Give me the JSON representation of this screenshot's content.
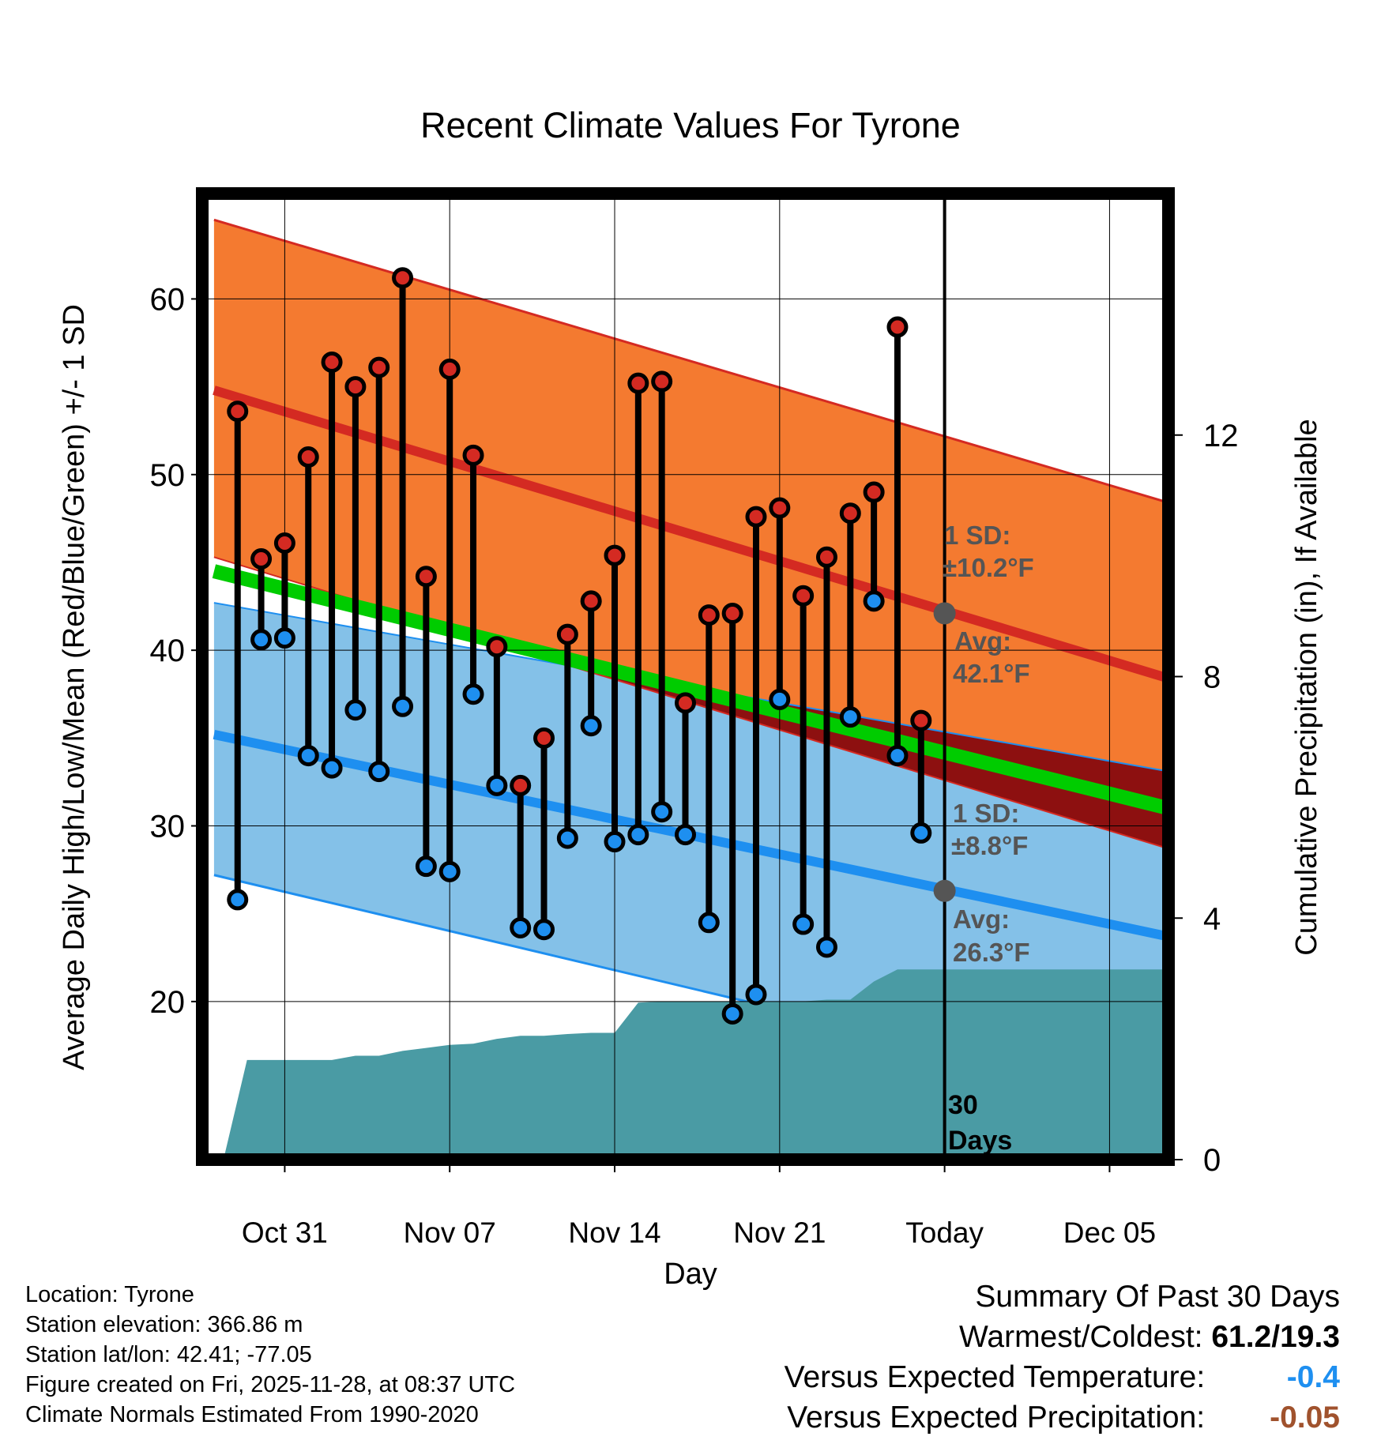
{
  "chart_data": {
    "type": "line",
    "title": "Recent Climate Values For Tyrone",
    "xlabel": "Day",
    "ylabel": "Average Daily High/Low/Mean (Red/Blue/Green) +/- 1 SD",
    "y2label": "Cumulative Precipitation (in), If Available",
    "x_range_days": [
      -31.5,
      9.5
    ],
    "ylim": [
      11,
      66
    ],
    "y2lim": [
      0,
      16
    ],
    "y_ticks": [
      20,
      30,
      40,
      50,
      60
    ],
    "y2_ticks": [
      0,
      4,
      8,
      12
    ],
    "x_ticks": [
      {
        "day": -28,
        "label": "Oct 31"
      },
      {
        "day": -21,
        "label": "Nov 07"
      },
      {
        "day": -14,
        "label": "Nov 14"
      },
      {
        "day": -7,
        "label": "Nov 21"
      },
      {
        "day": 0,
        "label": "Today"
      },
      {
        "day": 7,
        "label": "Dec 05"
      }
    ],
    "normals": {
      "days": [
        -31,
        9.5
      ],
      "high_avg": [
        54.8,
        38.4
      ],
      "high_upper": [
        64.5,
        48.4
      ],
      "high_lower": [
        45.3,
        28.7
      ],
      "low_avg": [
        35.2,
        23.7
      ],
      "low_upper": [
        42.7,
        33.1
      ],
      "low_lower": [
        27.2,
        14.3
      ],
      "mean_avg": [
        44.5,
        31.0
      ],
      "today_high_avg": 42.1,
      "today_low_avg": 26.3
    },
    "days": [
      -30,
      -29,
      -28,
      -27,
      -26,
      -25,
      -24,
      -23,
      -22,
      -21,
      -20,
      -19,
      -18,
      -17,
      -16,
      -15,
      -14,
      -13,
      -12,
      -11,
      -10,
      -9,
      -8,
      -7,
      -6,
      -5,
      -4,
      -3,
      -2,
      -1
    ],
    "highs": [
      53.6,
      45.2,
      46.1,
      51.0,
      56.4,
      55.0,
      56.1,
      61.2,
      44.2,
      56.0,
      51.1,
      40.2,
      32.3,
      35.0,
      40.9,
      42.8,
      45.4,
      55.2,
      55.3,
      37.0,
      42.0,
      42.1,
      47.6,
      48.1,
      43.1,
      45.3,
      47.8,
      49.0,
      58.4,
      36.0
    ],
    "lows": [
      25.8,
      40.6,
      40.7,
      34.0,
      33.3,
      36.6,
      33.1,
      36.8,
      27.7,
      27.4,
      37.5,
      32.3,
      24.2,
      24.1,
      29.3,
      35.7,
      29.1,
      29.5,
      30.8,
      29.5,
      24.5,
      19.3,
      20.4,
      37.2,
      24.4,
      23.1,
      36.2,
      42.8,
      34.0,
      29.6
    ],
    "precip_cumulative": {
      "days": [
        -30.6,
        -29.6,
        -27,
        -26,
        -25,
        -24,
        -23,
        -22,
        -21,
        -20,
        -19,
        -18,
        -17,
        -16,
        -15,
        -14,
        -13,
        -12,
        -11,
        -10,
        -9,
        -8,
        -7,
        -6,
        -5,
        -4,
        -3,
        -2,
        -1,
        0,
        9.5
      ],
      "values": [
        0,
        1.65,
        1.65,
        1.65,
        1.72,
        1.72,
        1.8,
        1.85,
        1.9,
        1.92,
        2.0,
        2.05,
        2.05,
        2.08,
        2.1,
        2.1,
        2.6,
        2.62,
        2.62,
        2.62,
        2.62,
        2.62,
        2.62,
        2.62,
        2.65,
        2.65,
        2.95,
        3.15,
        3.15,
        3.15,
        3.15
      ]
    },
    "annotations": {
      "high_sd_title": "1 SD:",
      "high_sd_value": "±10.2°F",
      "high_avg_title": "Avg:",
      "high_avg_value": "42.1°F",
      "low_sd_title": "1 SD:",
      "low_sd_value": "±8.8°F",
      "low_avg_title": "Avg:",
      "low_avg_value": "26.3°F",
      "days_label_1": "30",
      "days_label_2": "Days"
    },
    "colors": {
      "high_band": "#f47a30",
      "high_line": "#d42a22",
      "low_band": "#84c1e8",
      "low_line": "#1e8ff0",
      "mean_line": "#00cc00",
      "overlap": "#8d1010",
      "precip": "#4a9ba4",
      "high_marker": "#d42a22",
      "low_marker": "#1e8ff0",
      "annotation": "#555555",
      "today_marker": "#555555"
    }
  },
  "footer": {
    "location": "Location: Tyrone",
    "elevation": "Station elevation: 366.86 m",
    "latlon": "Station lat/lon: 42.41; -77.05",
    "created": "Figure created on Fri, 2025-11-28, at 08:37 UTC",
    "normals": "Climate Normals Estimated From 1990-2020"
  },
  "summary": {
    "title": "Summary Of Past 30 Days",
    "warm_label": "Warmest/Coldest:",
    "warm_value": "61.2/19.3",
    "temp_label": "Versus Expected Temperature:",
    "temp_value": "-0.4",
    "temp_color": "#1e8ff0",
    "precip_label": "Versus Expected Precipitation:",
    "precip_value": "-0.05",
    "precip_color": "#a0522d"
  }
}
